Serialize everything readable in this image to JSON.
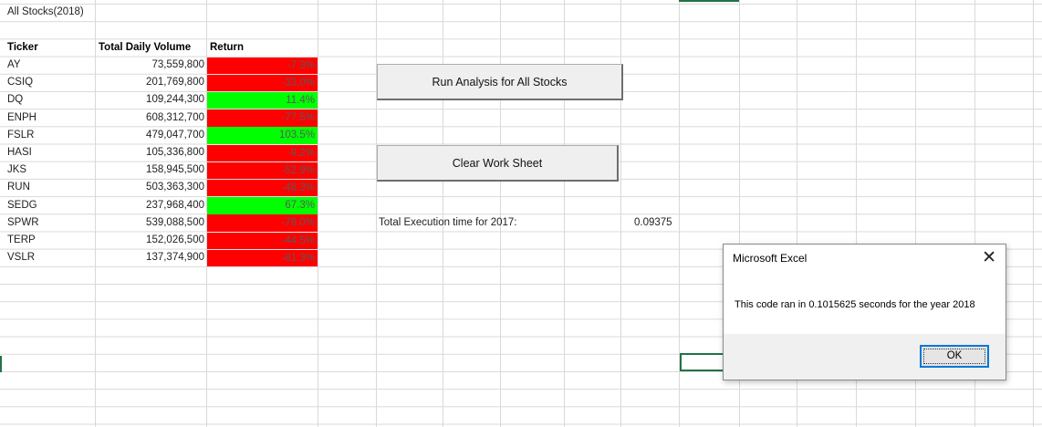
{
  "sheet_title": "All Stocks(2018)",
  "headers": {
    "ticker": "Ticker",
    "volume": "Total Daily Volume",
    "return": "Return"
  },
  "rows": [
    {
      "ticker": "AY",
      "volume": "73,559,800",
      "return": "-7.3%",
      "positive": false
    },
    {
      "ticker": "CSIQ",
      "volume": "201,769,800",
      "return": "-33.0%",
      "positive": false
    },
    {
      "ticker": "DQ",
      "volume": "109,244,300",
      "return": "11.4%",
      "positive": true
    },
    {
      "ticker": "ENPH",
      "volume": "608,312,700",
      "return": "-77.5%",
      "positive": false
    },
    {
      "ticker": "FSLR",
      "volume": "479,047,700",
      "return": "103.5%",
      "positive": true
    },
    {
      "ticker": "HASI",
      "volume": "105,336,800",
      "return": "-9.2%",
      "positive": false
    },
    {
      "ticker": "JKS",
      "volume": "158,945,500",
      "return": "-52.9%",
      "positive": false
    },
    {
      "ticker": "RUN",
      "volume": "503,363,300",
      "return": "-48.3%",
      "positive": false
    },
    {
      "ticker": "SEDG",
      "volume": "237,968,400",
      "return": "67.3%",
      "positive": true
    },
    {
      "ticker": "SPWR",
      "volume": "539,088,500",
      "return": "-76.0%",
      "positive": false
    },
    {
      "ticker": "TERP",
      "volume": "152,026,500",
      "return": "-44.5%",
      "positive": false
    },
    {
      "ticker": "VSLR",
      "volume": "137,374,900",
      "return": "-81.3%",
      "positive": false
    }
  ],
  "buttons": {
    "run_all": "Run Analysis for All Stocks",
    "clear": "Clear Work Sheet"
  },
  "execution": {
    "label": "Total Execution time for 2017:",
    "value": "0.09375"
  },
  "dialog": {
    "title": "Microsoft Excel",
    "close_glyph": "✕",
    "message": "This code ran in 0.1015625 seconds for the year 2018",
    "ok_label": "OK"
  },
  "colors": {
    "positive": "#00ff00",
    "negative": "#ff0000",
    "gridline": "#d9d9d9",
    "selection": "#217346"
  }
}
